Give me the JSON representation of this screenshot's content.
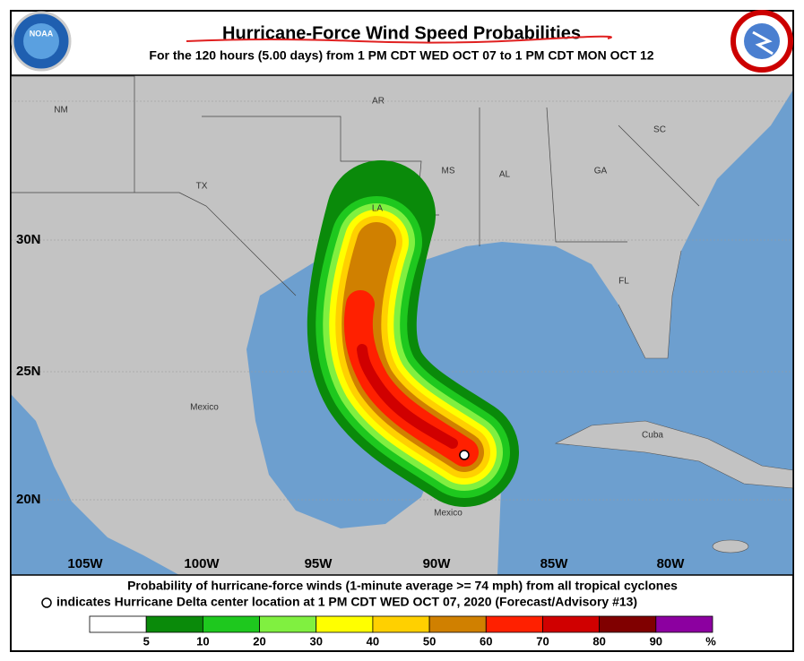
{
  "header": {
    "title": "Hurricane-Force Wind Speed Probabilities",
    "subtitle": "For the 120 hours (5.00 days) from 1 PM CDT WED OCT 07 to 1 PM CDT MON OCT 12",
    "logo_text": "NOAA"
  },
  "map": {
    "region_labels": [
      {
        "text": "NM"
      },
      {
        "text": "AR"
      },
      {
        "text": "TX"
      },
      {
        "text": "MS"
      },
      {
        "text": "AL"
      },
      {
        "text": "GA"
      },
      {
        "text": "SC"
      },
      {
        "text": "LA"
      },
      {
        "text": "FL"
      },
      {
        "text": "Mexico"
      },
      {
        "text": "Mexico"
      },
      {
        "text": "Cuba"
      }
    ],
    "latitude_labels": [
      "30N",
      "25N",
      "20N"
    ],
    "longitude_labels": [
      "105W",
      "100W",
      "95W",
      "90W",
      "85W",
      "80W"
    ]
  },
  "footer": {
    "line1": "Probability of hurricane-force winds (1-minute average >= 74 mph) from all tropical cyclones",
    "line2": "indicates Hurricane Delta center location at 1 PM CDT WED OCT 07, 2020 (Forecast/Advisory #13)"
  },
  "legend": {
    "colors": [
      "#ffffff",
      "#0a8a0a",
      "#1ec81e",
      "#80f040",
      "#ffff00",
      "#ffd000",
      "#d08000",
      "#ff2000",
      "#d00000",
      "#800000",
      "#8c00a0"
    ],
    "ticks": [
      5,
      10,
      20,
      30,
      40,
      50,
      60,
      70,
      80,
      90
    ],
    "unit": "%"
  }
}
